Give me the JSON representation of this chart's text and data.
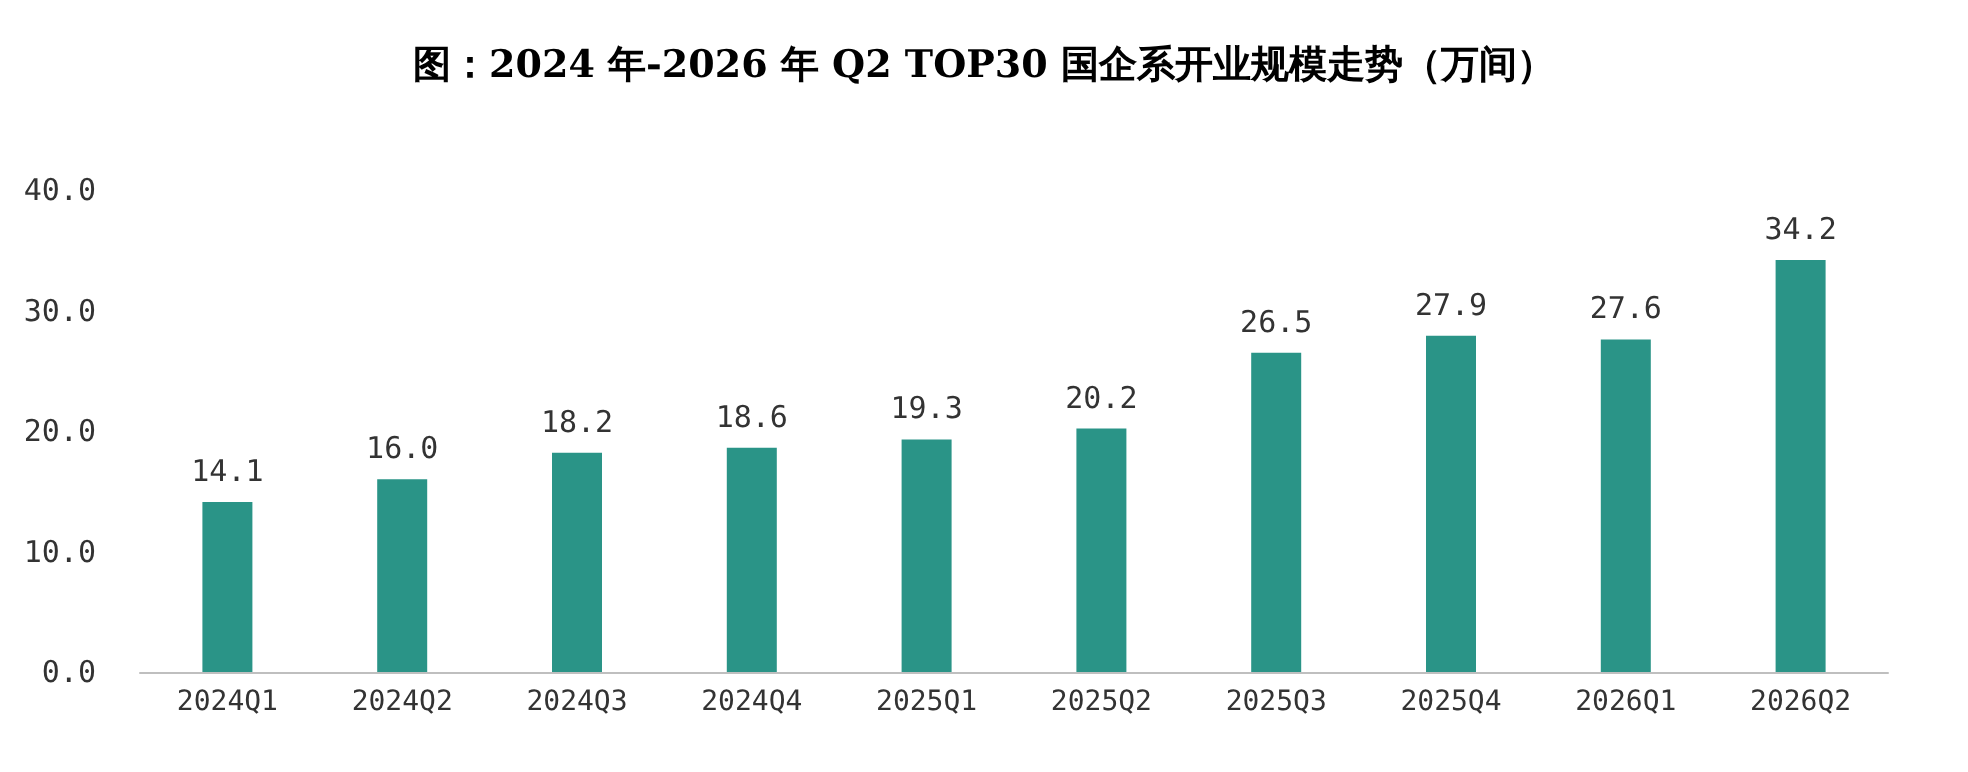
{
  "chart_data": {
    "type": "bar",
    "title": "图：2024 年-2026 年 Q2 TOP30 国企系开业规模走势（万间）",
    "categories": [
      "2024Q1",
      "2024Q2",
      "2024Q3",
      "2024Q4",
      "2025Q1",
      "2025Q2",
      "2025Q3",
      "2025Q4",
      "2026Q1",
      "2026Q2"
    ],
    "values": [
      14.1,
      16.0,
      18.2,
      18.6,
      19.3,
      20.2,
      26.5,
      27.9,
      27.6,
      34.2
    ],
    "value_labels": [
      "14.1",
      "16.0",
      "18.2",
      "18.6",
      "19.3",
      "20.2",
      "26.5",
      "27.9",
      "27.6",
      "34.2"
    ],
    "color": "#2a9487",
    "ylim": [
      0,
      40
    ],
    "yticks": [
      {
        "value": 0,
        "label": "0.0"
      },
      {
        "value": 10,
        "label": "10.0"
      },
      {
        "value": 20,
        "label": "20.0"
      },
      {
        "value": 30,
        "label": "30.0"
      },
      {
        "value": 40,
        "label": "40.0"
      }
    ],
    "grid": false
  }
}
